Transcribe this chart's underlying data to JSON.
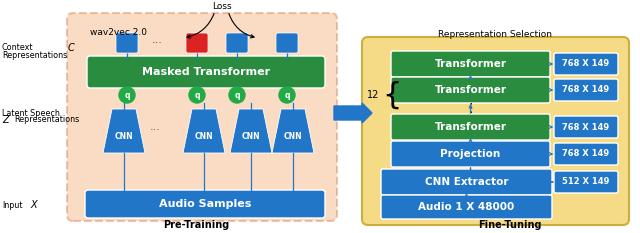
{
  "bg_color": "#ffffff",
  "blue": "#2176C8",
  "green": "#2A8C3F",
  "red_box": "#DD2222",
  "salmon_bg": "#F4B07A",
  "yellow_bg": "#F5D87A",
  "salmon_edge": "#D4845A",
  "yellow_edge": "#C8A830",
  "pretrain_label": "Pre-Training",
  "finetune_label": "Fine-Tuning",
  "wav2vec_label": "wav2vec 2.0",
  "loss_label": "Loss",
  "rep_sel_label": "Representation Selection",
  "context_label": "Context\nRepresentations",
  "latent_label": "Latent Speech",
  "latent_label2": "Representations",
  "input_label": "Input",
  "masked_tf_label": "Masked Transformer",
  "audio_samples_label": "Audio Samples",
  "transformer_labels": [
    "Transformer",
    "Transformer",
    "Transformer"
  ],
  "projection_label": "Projection",
  "cnn_extractor_label": "CNN Extractor",
  "audio_input_label": "Audio 1 X 48000",
  "dims_768": "768 X 149",
  "dims_512": "512 X 149",
  "brace_num": "12"
}
